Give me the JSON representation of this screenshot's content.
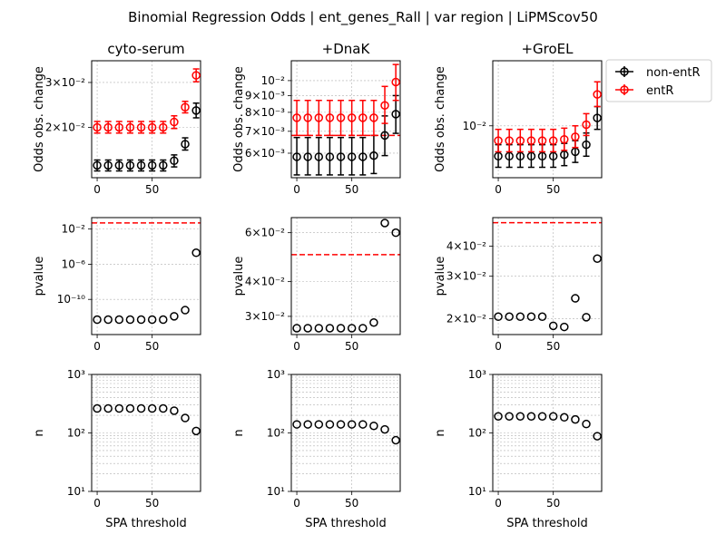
{
  "figure": {
    "suptitle": "Binomial Regression Odds | ent_genes_Rall | var region | LiPMScov50",
    "legend": {
      "placement": "top-right, outside panel grid",
      "entries": [
        {
          "name": "non-entR",
          "color": "#000000"
        },
        {
          "name": "entR",
          "color": "#ff0000"
        }
      ]
    }
  },
  "chart_data": [
    {
      "type": "scatter",
      "title": "cyto-serum",
      "ylabel": "Odds obs. change",
      "xlabel": "",
      "yscale": "log",
      "xlim": [
        -5,
        94
      ],
      "ylim": [
        0.0127,
        0.0365
      ],
      "grid": true,
      "xticks": [
        0,
        50
      ],
      "xtick_labels": [
        "0",
        "50"
      ],
      "yticks": [
        0.02,
        0.03
      ],
      "ytick_labels": [
        "2×10⁻²",
        "3×10⁻²"
      ],
      "series": [
        {
          "name": "non-entR",
          "color": "#000000",
          "x": [
            0,
            10,
            20,
            30,
            40,
            50,
            60,
            70,
            80,
            90
          ],
          "y": [
            0.0142,
            0.0142,
            0.0142,
            0.0142,
            0.0142,
            0.0142,
            0.0142,
            0.0148,
            0.0172,
            0.0233
          ],
          "err_low": [
            0.0135,
            0.0135,
            0.0135,
            0.0135,
            0.0135,
            0.0135,
            0.0135,
            0.014,
            0.0163,
            0.0218
          ],
          "err_high": [
            0.0149,
            0.0149,
            0.0149,
            0.0149,
            0.0149,
            0.0149,
            0.0149,
            0.0156,
            0.0182,
            0.0249
          ]
        },
        {
          "name": "entR",
          "color": "#ff0000",
          "x": [
            0,
            10,
            20,
            30,
            40,
            50,
            60,
            70,
            80,
            90
          ],
          "y": [
            0.02,
            0.02,
            0.02,
            0.02,
            0.02,
            0.02,
            0.02,
            0.021,
            0.024,
            0.032
          ],
          "err_low": [
            0.019,
            0.019,
            0.019,
            0.019,
            0.019,
            0.019,
            0.019,
            0.0198,
            0.0228,
            0.0302
          ],
          "err_high": [
            0.0211,
            0.0211,
            0.0211,
            0.0211,
            0.0211,
            0.0211,
            0.0211,
            0.0222,
            0.0253,
            0.0339
          ]
        }
      ]
    },
    {
      "type": "scatter",
      "title": "+DnaK",
      "ylabel": "Odds obs. change",
      "xlabel": "",
      "yscale": "log",
      "xlim": [
        -5,
        94
      ],
      "ylim": [
        0.00505,
        0.0115
      ],
      "grid": true,
      "hline": {
        "y": 0.0068,
        "color": "#ff0000",
        "style": "dashed"
      },
      "xticks": [
        0,
        50
      ],
      "xtick_labels": [
        "0",
        "50"
      ],
      "yticks": [
        0.006,
        0.007,
        0.008,
        0.009,
        0.01
      ],
      "ytick_labels": [
        "6×10⁻³",
        "7×10⁻³",
        "8×10⁻³",
        "9×10⁻³",
        "10⁻²"
      ],
      "series": [
        {
          "name": "non-entR",
          "color": "#000000",
          "x": [
            0,
            10,
            20,
            30,
            40,
            50,
            60,
            70,
            80,
            90
          ],
          "y": [
            0.00585,
            0.00585,
            0.00585,
            0.00585,
            0.00585,
            0.00585,
            0.00585,
            0.0059,
            0.0068,
            0.0079
          ],
          "err_low": [
            0.00515,
            0.00515,
            0.00515,
            0.00515,
            0.00515,
            0.00515,
            0.00515,
            0.0052,
            0.0059,
            0.0069
          ],
          "err_high": [
            0.0067,
            0.0067,
            0.0067,
            0.0067,
            0.0067,
            0.0067,
            0.0067,
            0.0068,
            0.0078,
            0.009
          ]
        },
        {
          "name": "entR",
          "color": "#ff0000",
          "x": [
            0,
            10,
            20,
            30,
            40,
            50,
            60,
            70,
            80,
            90
          ],
          "y": [
            0.0077,
            0.0077,
            0.0077,
            0.0077,
            0.0077,
            0.0077,
            0.0077,
            0.0077,
            0.0084,
            0.0099
          ],
          "err_low": [
            0.0068,
            0.0068,
            0.0068,
            0.0068,
            0.0068,
            0.0068,
            0.0068,
            0.0068,
            0.0074,
            0.0087
          ],
          "err_high": [
            0.0087,
            0.0087,
            0.0087,
            0.0087,
            0.0087,
            0.0087,
            0.0087,
            0.0087,
            0.0096,
            0.0112
          ]
        }
      ]
    },
    {
      "type": "scatter",
      "title": "+GroEL",
      "ylabel": "Odds obs. change",
      "xlabel": "",
      "yscale": "log",
      "xlim": [
        -5,
        94
      ],
      "ylim": [
        0.0064,
        0.0175
      ],
      "grid": true,
      "xticks": [
        0,
        50
      ],
      "xtick_labels": [
        "0",
        "50"
      ],
      "yticks": [
        0.01
      ],
      "ytick_labels": [
        "10⁻²"
      ],
      "series": [
        {
          "name": "non-entR",
          "color": "#000000",
          "x": [
            0,
            10,
            20,
            30,
            40,
            50,
            60,
            70,
            80,
            90
          ],
          "y": [
            0.0077,
            0.0077,
            0.0077,
            0.0077,
            0.0077,
            0.0077,
            0.0078,
            0.008,
            0.0085,
            0.0107
          ],
          "err_low": [
            0.007,
            0.007,
            0.007,
            0.007,
            0.007,
            0.007,
            0.0071,
            0.0073,
            0.0077,
            0.0097
          ],
          "err_high": [
            0.0085,
            0.0085,
            0.0085,
            0.0085,
            0.0085,
            0.0085,
            0.0086,
            0.0088,
            0.0094,
            0.0118
          ]
        },
        {
          "name": "entR",
          "color": "#ff0000",
          "x": [
            0,
            10,
            20,
            30,
            40,
            50,
            60,
            70,
            80,
            90
          ],
          "y": [
            0.0088,
            0.0088,
            0.0088,
            0.0088,
            0.0088,
            0.0088,
            0.0089,
            0.0091,
            0.0101,
            0.0131
          ],
          "err_low": [
            0.008,
            0.008,
            0.008,
            0.008,
            0.008,
            0.008,
            0.0081,
            0.0083,
            0.0092,
            0.0118
          ],
          "err_high": [
            0.0097,
            0.0097,
            0.0097,
            0.0097,
            0.0097,
            0.0097,
            0.0098,
            0.01,
            0.0111,
            0.0146
          ]
        }
      ]
    },
    {
      "type": "scatter",
      "title": "",
      "ylabel": "pvalue",
      "xlabel": "",
      "yscale": "log",
      "xlim": [
        -5,
        94
      ],
      "ylim": [
        1e-14,
        0.2
      ],
      "grid": true,
      "hline": {
        "y": 0.05,
        "color": "#ff0000",
        "style": "dashed"
      },
      "xticks": [
        0,
        50
      ],
      "xtick_labels": [
        "0",
        "50"
      ],
      "yticks": [
        1e-10,
        1e-06,
        0.01
      ],
      "ytick_labels": [
        "10⁻¹⁰",
        "10⁻⁶",
        "10⁻²"
      ],
      "series": [
        {
          "name": "pvalue",
          "color": "#000000",
          "x": [
            0,
            10,
            20,
            30,
            40,
            50,
            60,
            70,
            80,
            90
          ],
          "y": [
            5e-13,
            5e-13,
            5e-13,
            5e-13,
            5e-13,
            5e-13,
            5e-13,
            1.2e-12,
            6e-12,
            2e-05
          ]
        }
      ]
    },
    {
      "type": "scatter",
      "title": "",
      "ylabel": "pvalue",
      "xlabel": "",
      "yscale": "log",
      "xlim": [
        -5,
        94
      ],
      "ylim": [
        0.0258,
        0.068
      ],
      "grid": true,
      "hline": {
        "y": 0.05,
        "color": "#ff0000",
        "style": "dashed"
      },
      "xticks": [
        0,
        50
      ],
      "xtick_labels": [
        "0",
        "50"
      ],
      "yticks": [
        0.03,
        0.04,
        0.06
      ],
      "ytick_labels": [
        "3×10⁻²",
        "4×10⁻²",
        "6×10⁻²"
      ],
      "series": [
        {
          "name": "pvalue",
          "color": "#000000",
          "x": [
            0,
            10,
            20,
            30,
            40,
            50,
            60,
            70,
            80,
            90
          ],
          "y": [
            0.0272,
            0.0272,
            0.0272,
            0.0272,
            0.0272,
            0.0272,
            0.0272,
            0.0285,
            0.065,
            0.06
          ]
        }
      ]
    },
    {
      "type": "scatter",
      "title": "",
      "ylabel": "pvalue",
      "xlabel": "",
      "yscale": "log",
      "xlim": [
        -5,
        94
      ],
      "ylim": [
        0.0172,
        0.0525
      ],
      "grid": true,
      "hline": {
        "y": 0.05,
        "color": "#ff0000",
        "style": "dashed"
      },
      "xticks": [
        0,
        50
      ],
      "xtick_labels": [
        "0",
        "50"
      ],
      "yticks": [
        0.02,
        0.03,
        0.04
      ],
      "ytick_labels": [
        "2×10⁻²",
        "3×10⁻²",
        "4×10⁻²"
      ],
      "series": [
        {
          "name": "pvalue",
          "color": "#000000",
          "x": [
            0,
            10,
            20,
            30,
            40,
            50,
            60,
            70,
            80,
            90
          ],
          "y": [
            0.0204,
            0.0204,
            0.0204,
            0.0204,
            0.0204,
            0.0187,
            0.0185,
            0.0243,
            0.0203,
            0.0355
          ]
        }
      ]
    },
    {
      "type": "scatter",
      "title": "",
      "ylabel": "n",
      "xlabel": "SPA threshold",
      "yscale": "log",
      "xlim": [
        -5,
        94
      ],
      "ylim": [
        10,
        1000
      ],
      "grid": true,
      "xticks": [
        0,
        50
      ],
      "xtick_labels": [
        "0",
        "50"
      ],
      "yticks": [
        10,
        100,
        1000
      ],
      "ytick_labels": [
        "10¹",
        "10²",
        "10³"
      ],
      "series": [
        {
          "name": "n",
          "color": "#000000",
          "x": [
            0,
            10,
            20,
            30,
            40,
            50,
            60,
            70,
            80,
            90
          ],
          "y": [
            262,
            262,
            262,
            262,
            262,
            262,
            262,
            240,
            180,
            108
          ]
        }
      ]
    },
    {
      "type": "scatter",
      "title": "",
      "ylabel": "n",
      "xlabel": "SPA threshold",
      "yscale": "log",
      "xlim": [
        -5,
        94
      ],
      "ylim": [
        10,
        1000
      ],
      "grid": true,
      "xticks": [
        0,
        50
      ],
      "xtick_labels": [
        "0",
        "50"
      ],
      "yticks": [
        10,
        100,
        1000
      ],
      "ytick_labels": [
        "10¹",
        "10²",
        "10³"
      ],
      "series": [
        {
          "name": "n",
          "color": "#000000",
          "x": [
            0,
            10,
            20,
            30,
            40,
            50,
            60,
            70,
            80,
            90
          ],
          "y": [
            140,
            140,
            140,
            140,
            140,
            140,
            140,
            132,
            115,
            75
          ]
        }
      ]
    },
    {
      "type": "scatter",
      "title": "",
      "ylabel": "n",
      "xlabel": "SPA threshold",
      "yscale": "log",
      "xlim": [
        -5,
        94
      ],
      "ylim": [
        10,
        1000
      ],
      "grid": true,
      "xticks": [
        0,
        50
      ],
      "xtick_labels": [
        "0",
        "50"
      ],
      "yticks": [
        10,
        100,
        1000
      ],
      "ytick_labels": [
        "10¹",
        "10²",
        "10³"
      ],
      "series": [
        {
          "name": "n",
          "color": "#000000",
          "x": [
            0,
            10,
            20,
            30,
            40,
            50,
            60,
            70,
            80,
            90
          ],
          "y": [
            192,
            192,
            192,
            192,
            192,
            192,
            185,
            170,
            142,
            88
          ]
        }
      ]
    }
  ]
}
